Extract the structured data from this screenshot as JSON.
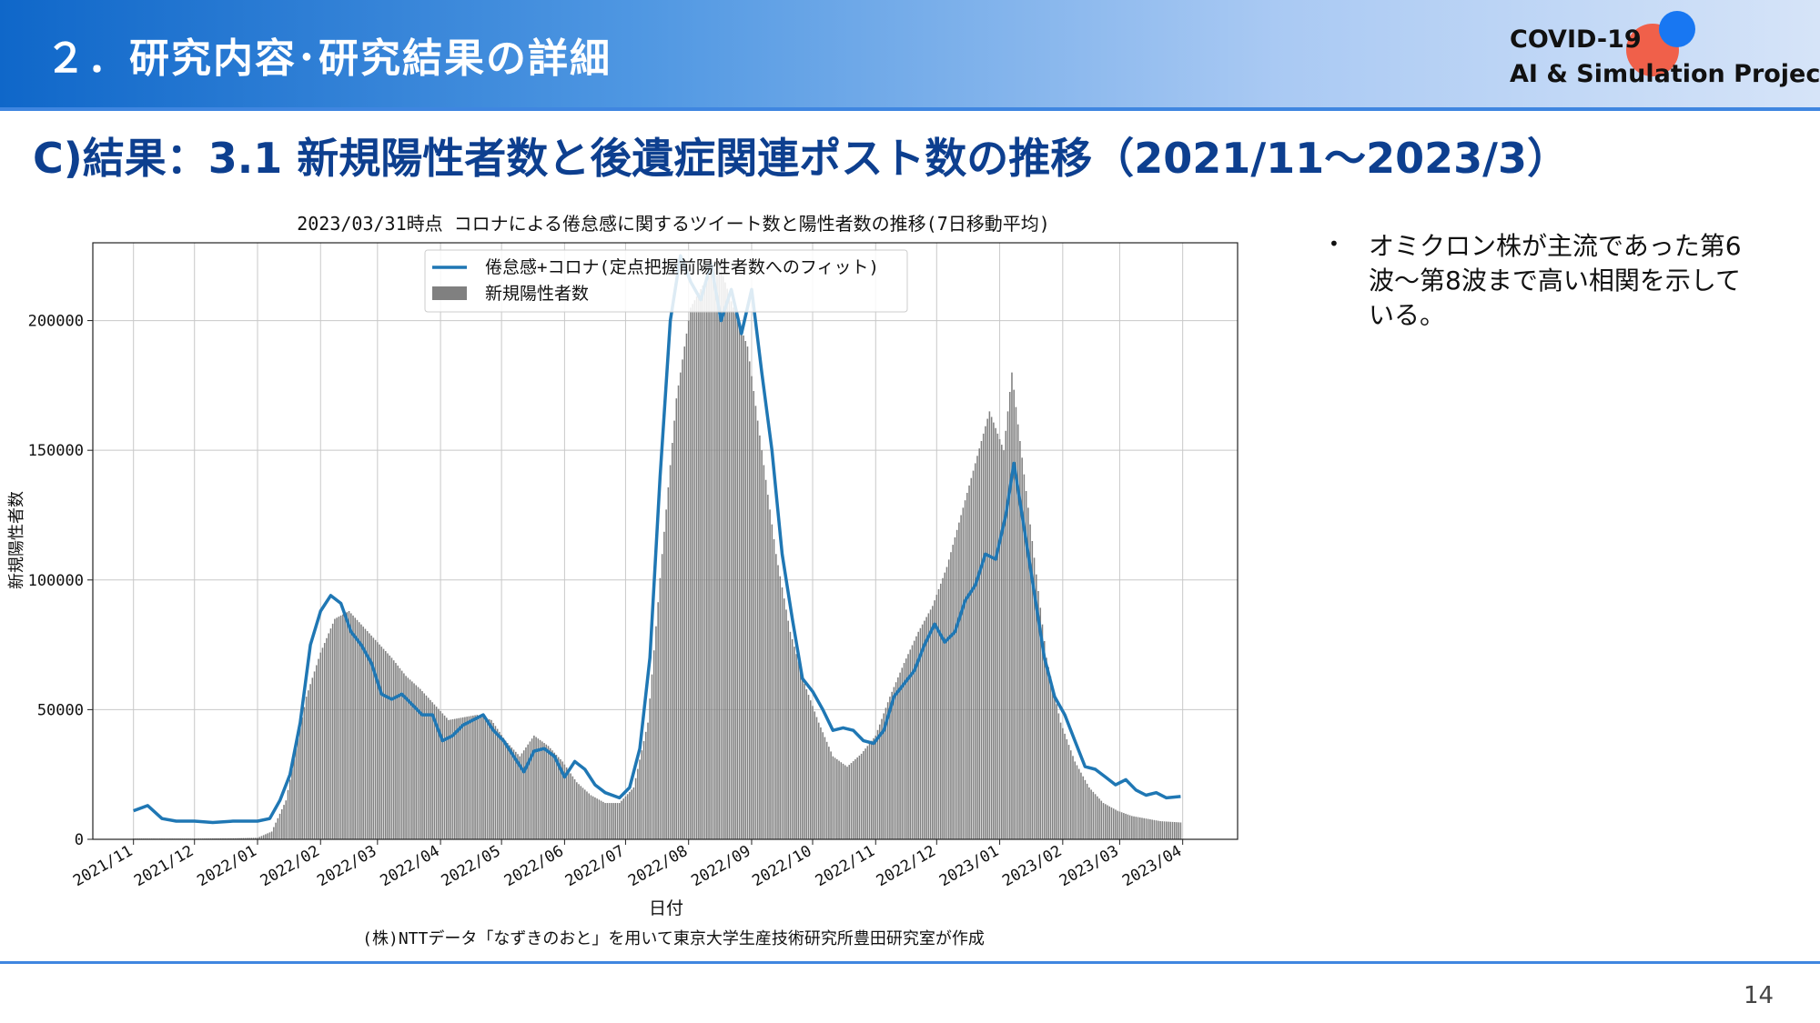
{
  "header": {
    "section_title": "２．研究内容･研究結果の詳細",
    "logo_line1": "COVID-19",
    "logo_line2": "AI & Simulation Project"
  },
  "slide_title": "C)結果：3.1 新規陽性者数と後遺症関連ポスト数の推移（2021/11～2023/3）",
  "bullet": {
    "text": "オミクロン株が主流であった第6波～第8波まで高い相関を示している。"
  },
  "page_number": "14",
  "colors": {
    "bars": "#808080",
    "line": "#1f77b4",
    "header_blue": "#0f67c9",
    "title_navy": "#0d3f8f"
  },
  "chart_data": {
    "type": "bar+line",
    "title": "2023/03/31時点 コロナによる倦怠感に関するツイート数と陽性者数の推移(7日移動平均)",
    "xlabel": "日付",
    "ylabel": "新規陽性者数",
    "ylim": [
      0,
      230000
    ],
    "yticks": [
      0,
      50000,
      100000,
      150000,
      200000
    ],
    "xticks": [
      "2021/11",
      "2021/12",
      "2022/01",
      "2022/02",
      "2022/03",
      "2022/04",
      "2022/05",
      "2022/06",
      "2022/07",
      "2022/08",
      "2022/09",
      "2022/10",
      "2022/11",
      "2022/12",
      "2023/01",
      "2023/02",
      "2023/03",
      "2023/04"
    ],
    "grid": true,
    "legend_position": "top-center",
    "caption": "(株)NTTデータ「なずきのおと」を用いて東京大学生産技術研究所豊田研究室が作成",
    "series": [
      {
        "name": "新規陽性者数",
        "kind": "bar",
        "points": [
          [
            "2021/11/01",
            300
          ],
          [
            "2021/12/01",
            250
          ],
          [
            "2021/12/20",
            400
          ],
          [
            "2022/01/01",
            600
          ],
          [
            "2022/01/08",
            3000
          ],
          [
            "2022/01/15",
            15000
          ],
          [
            "2022/01/20",
            35000
          ],
          [
            "2022/01/25",
            55000
          ],
          [
            "2022/02/01",
            72000
          ],
          [
            "2022/02/08",
            85000
          ],
          [
            "2022/02/15",
            88000
          ],
          [
            "2022/02/22",
            82000
          ],
          [
            "2022/03/01",
            76000
          ],
          [
            "2022/03/08",
            70000
          ],
          [
            "2022/03/15",
            63000
          ],
          [
            "2022/03/22",
            58000
          ],
          [
            "2022/03/29",
            52000
          ],
          [
            "2022/04/05",
            46000
          ],
          [
            "2022/04/12",
            47000
          ],
          [
            "2022/04/19",
            48000
          ],
          [
            "2022/04/26",
            46000
          ],
          [
            "2022/05/03",
            38000
          ],
          [
            "2022/05/10",
            32000
          ],
          [
            "2022/05/17",
            40000
          ],
          [
            "2022/05/24",
            36000
          ],
          [
            "2022/05/31",
            30000
          ],
          [
            "2022/06/07",
            22000
          ],
          [
            "2022/06/14",
            17000
          ],
          [
            "2022/06/21",
            14000
          ],
          [
            "2022/06/28",
            14000
          ],
          [
            "2022/07/05",
            20000
          ],
          [
            "2022/07/12",
            45000
          ],
          [
            "2022/07/19",
            110000
          ],
          [
            "2022/07/26",
            170000
          ],
          [
            "2022/08/02",
            205000
          ],
          [
            "2022/08/09",
            215000
          ],
          [
            "2022/08/16",
            222000
          ],
          [
            "2022/08/23",
            205000
          ],
          [
            "2022/08/30",
            190000
          ],
          [
            "2022/09/06",
            150000
          ],
          [
            "2022/09/13",
            110000
          ],
          [
            "2022/09/20",
            80000
          ],
          [
            "2022/09/27",
            60000
          ],
          [
            "2022/10/04",
            45000
          ],
          [
            "2022/10/11",
            32000
          ],
          [
            "2022/10/18",
            28000
          ],
          [
            "2022/10/25",
            33000
          ],
          [
            "2022/11/01",
            40000
          ],
          [
            "2022/11/08",
            55000
          ],
          [
            "2022/11/15",
            68000
          ],
          [
            "2022/11/22",
            80000
          ],
          [
            "2022/11/29",
            90000
          ],
          [
            "2022/12/06",
            105000
          ],
          [
            "2022/12/13",
            125000
          ],
          [
            "2022/12/20",
            145000
          ],
          [
            "2022/12/27",
            165000
          ],
          [
            "2023/01/03",
            150000
          ],
          [
            "2023/01/07",
            180000
          ],
          [
            "2023/01/10",
            160000
          ],
          [
            "2023/01/17",
            115000
          ],
          [
            "2023/01/24",
            70000
          ],
          [
            "2023/01/31",
            45000
          ],
          [
            "2023/02/07",
            30000
          ],
          [
            "2023/02/14",
            20000
          ],
          [
            "2023/02/21",
            14000
          ],
          [
            "2023/02/28",
            11000
          ],
          [
            "2023/03/07",
            9000
          ],
          [
            "2023/03/14",
            8000
          ],
          [
            "2023/03/21",
            7000
          ],
          [
            "2023/03/31",
            6500
          ]
        ]
      },
      {
        "name": "倦怠感+コロナ(定点把握前陽性者数へのフィット)",
        "kind": "line",
        "points": [
          [
            "2021/11/01",
            11000
          ],
          [
            "2021/11/08",
            13000
          ],
          [
            "2021/11/15",
            8000
          ],
          [
            "2021/11/22",
            7000
          ],
          [
            "2021/12/01",
            7000
          ],
          [
            "2021/12/10",
            6500
          ],
          [
            "2021/12/20",
            7000
          ],
          [
            "2022/01/01",
            7000
          ],
          [
            "2022/01/07",
            8000
          ],
          [
            "2022/01/12",
            15000
          ],
          [
            "2022/01/17",
            25000
          ],
          [
            "2022/01/22",
            45000
          ],
          [
            "2022/01/27",
            75000
          ],
          [
            "2022/02/01",
            88000
          ],
          [
            "2022/02/06",
            94000
          ],
          [
            "2022/02/11",
            91000
          ],
          [
            "2022/02/16",
            80000
          ],
          [
            "2022/02/21",
            75000
          ],
          [
            "2022/02/26",
            68000
          ],
          [
            "2022/03/03",
            56000
          ],
          [
            "2022/03/08",
            54000
          ],
          [
            "2022/03/13",
            56000
          ],
          [
            "2022/03/18",
            52000
          ],
          [
            "2022/03/23",
            48000
          ],
          [
            "2022/03/28",
            48000
          ],
          [
            "2022/04/02",
            38000
          ],
          [
            "2022/04/07",
            40000
          ],
          [
            "2022/04/12",
            44000
          ],
          [
            "2022/04/17",
            46000
          ],
          [
            "2022/04/22",
            48000
          ],
          [
            "2022/04/27",
            42000
          ],
          [
            "2022/05/02",
            38000
          ],
          [
            "2022/05/07",
            32000
          ],
          [
            "2022/05/12",
            26000
          ],
          [
            "2022/05/17",
            34000
          ],
          [
            "2022/05/22",
            35000
          ],
          [
            "2022/05/27",
            32000
          ],
          [
            "2022/06/01",
            24000
          ],
          [
            "2022/06/06",
            30000
          ],
          [
            "2022/06/11",
            27000
          ],
          [
            "2022/06/16",
            21000
          ],
          [
            "2022/06/21",
            18000
          ],
          [
            "2022/06/28",
            16000
          ],
          [
            "2022/07/03",
            20000
          ],
          [
            "2022/07/08",
            35000
          ],
          [
            "2022/07/13",
            70000
          ],
          [
            "2022/07/18",
            140000
          ],
          [
            "2022/07/23",
            200000
          ],
          [
            "2022/07/28",
            225000
          ],
          [
            "2022/08/02",
            215000
          ],
          [
            "2022/08/07",
            208000
          ],
          [
            "2022/08/12",
            222000
          ],
          [
            "2022/08/17",
            200000
          ],
          [
            "2022/08/22",
            212000
          ],
          [
            "2022/08/27",
            195000
          ],
          [
            "2022/09/01",
            212000
          ],
          [
            "2022/09/06",
            180000
          ],
          [
            "2022/09/11",
            150000
          ],
          [
            "2022/09/16",
            110000
          ],
          [
            "2022/09/21",
            85000
          ],
          [
            "2022/09/26",
            62000
          ],
          [
            "2022/10/01",
            57000
          ],
          [
            "2022/10/06",
            50000
          ],
          [
            "2022/10/11",
            42000
          ],
          [
            "2022/10/16",
            43000
          ],
          [
            "2022/10/21",
            42000
          ],
          [
            "2022/10/26",
            38000
          ],
          [
            "2022/10/31",
            37000
          ],
          [
            "2022/11/05",
            42000
          ],
          [
            "2022/11/10",
            55000
          ],
          [
            "2022/11/15",
            60000
          ],
          [
            "2022/11/20",
            65000
          ],
          [
            "2022/11/25",
            75000
          ],
          [
            "2022/11/30",
            83000
          ],
          [
            "2022/12/05",
            76000
          ],
          [
            "2022/12/10",
            80000
          ],
          [
            "2022/12/15",
            92000
          ],
          [
            "2022/12/20",
            98000
          ],
          [
            "2022/12/25",
            110000
          ],
          [
            "2022/12/30",
            108000
          ],
          [
            "2023/01/04",
            125000
          ],
          [
            "2023/01/08",
            145000
          ],
          [
            "2023/01/13",
            120000
          ],
          [
            "2023/01/18",
            95000
          ],
          [
            "2023/01/23",
            70000
          ],
          [
            "2023/01/28",
            55000
          ],
          [
            "2023/02/02",
            48000
          ],
          [
            "2023/02/07",
            38000
          ],
          [
            "2023/02/12",
            28000
          ],
          [
            "2023/02/17",
            27000
          ],
          [
            "2023/02/22",
            24000
          ],
          [
            "2023/02/27",
            21000
          ],
          [
            "2023/03/04",
            23000
          ],
          [
            "2023/03/09",
            19000
          ],
          [
            "2023/03/14",
            17000
          ],
          [
            "2023/03/19",
            18000
          ],
          [
            "2023/03/24",
            16000
          ],
          [
            "2023/03/31",
            16500
          ]
        ]
      }
    ]
  }
}
